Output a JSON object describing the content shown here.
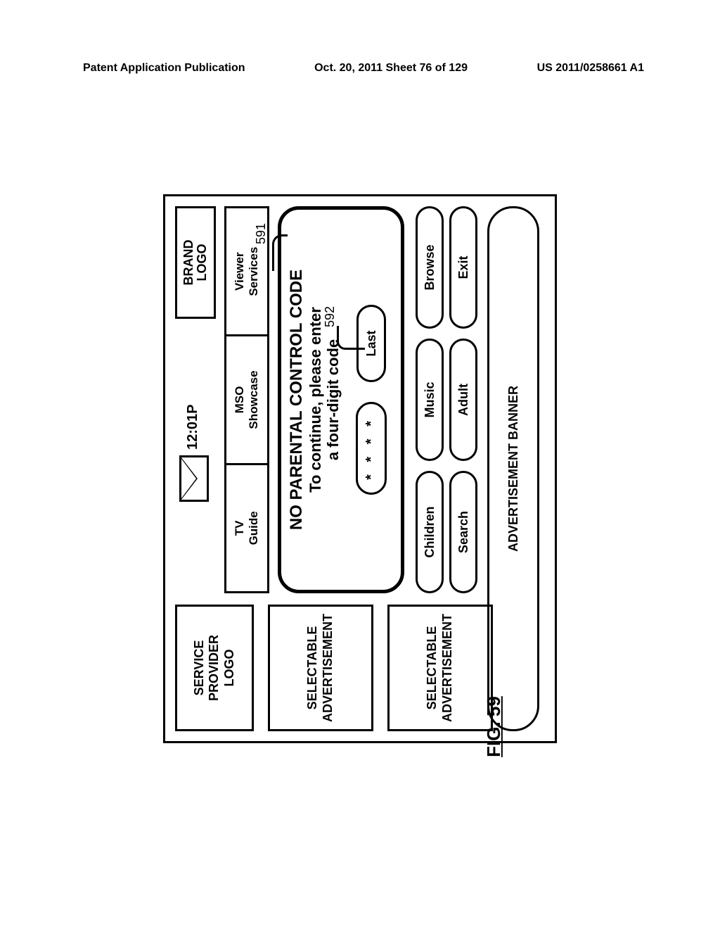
{
  "header": {
    "left": "Patent Application Publication",
    "mid": "Oct. 20, 2011  Sheet 76 of 129",
    "right": "US 2011/0258661 A1"
  },
  "figure_label": "FIG. 59",
  "callouts": {
    "dialog_ref": "591",
    "codefield_ref": "592"
  },
  "colors": {
    "stroke": "#000000",
    "background": "#ffffff"
  },
  "ui": {
    "service_provider_logo": "SERVICE\nPROVIDER\nLOGO",
    "selectable_ad": "SELECTABLE\nADVERTISEMENT",
    "clock": "12:01P",
    "brand_logo": "BRAND\nLOGO",
    "tabs": [
      "TV\nGuide",
      "MSO\nShowcase",
      "Viewer\nServices"
    ],
    "dialog": {
      "title": "NO PARENTAL CONTROL CODE",
      "subtitle": "To continue, please enter\na four-digit code",
      "code_placeholder": "* * * *",
      "last_label": "Last"
    },
    "pill_row1": [
      "Children",
      "Music",
      "Browse"
    ],
    "pill_row2": [
      "Search",
      "Adult",
      "Exit"
    ],
    "ad_banner": "ADVERTISEMENT BANNER"
  }
}
